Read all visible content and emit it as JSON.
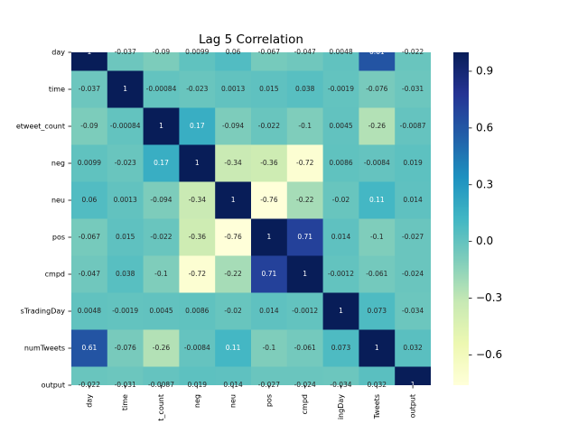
{
  "chart_data": {
    "type": "heatmap",
    "title": "Lag 5 Correlation",
    "rows": [
      "day",
      "time",
      "etweet_count",
      "neg",
      "neu",
      "pos",
      "cmpd",
      "sTradingDay",
      "numTweets",
      "output"
    ],
    "columns": [
      "day",
      "time",
      "t_count",
      "neg",
      "neu",
      "pos",
      "cmpd",
      "ingDay",
      "Tweets",
      "output"
    ],
    "values": [
      [
        1,
        -0.037,
        -0.09,
        0.0099,
        0.06,
        -0.067,
        -0.047,
        0.0048,
        0.61,
        -0.022
      ],
      [
        -0.037,
        1,
        -0.00084,
        -0.023,
        0.0013,
        0.015,
        0.038,
        -0.0019,
        -0.076,
        -0.031
      ],
      [
        -0.09,
        -0.00084,
        1,
        0.17,
        -0.094,
        -0.022,
        -0.1,
        0.0045,
        -0.26,
        -0.0087
      ],
      [
        0.0099,
        -0.023,
        0.17,
        1,
        -0.34,
        -0.36,
        -0.72,
        0.0086,
        -0.0084,
        0.019
      ],
      [
        0.06,
        0.0013,
        -0.094,
        -0.34,
        1,
        -0.76,
        -0.22,
        -0.02,
        0.11,
        0.014
      ],
      [
        -0.067,
        0.015,
        -0.022,
        -0.36,
        -0.76,
        1,
        0.71,
        0.014,
        -0.1,
        -0.027
      ],
      [
        -0.047,
        0.038,
        -0.1,
        -0.72,
        -0.22,
        0.71,
        1,
        -0.0012,
        -0.061,
        -0.024
      ],
      [
        0.0048,
        -0.0019,
        0.0045,
        0.0086,
        -0.02,
        0.014,
        -0.0012,
        1,
        0.073,
        -0.034
      ],
      [
        0.61,
        -0.076,
        -0.26,
        -0.0084,
        0.11,
        -0.1,
        -0.061,
        0.073,
        1,
        0.032
      ],
      [
        -0.022,
        -0.031,
        -0.0087,
        0.019,
        0.014,
        -0.027,
        -0.024,
        -0.034,
        0.032,
        1
      ]
    ],
    "clim": [
      -0.76,
      1
    ],
    "cticks": [
      {
        "value": -0.6,
        "label": "−0.6"
      },
      {
        "value": -0.3,
        "label": "−0.3"
      },
      {
        "value": 0,
        "label": "0.0"
      },
      0.3,
      0.6,
      0.9
    ],
    "colormap": [
      "#ffffd9",
      "#edf8b1",
      "#c7e9b4",
      "#7fcdbb",
      "#41b6c4",
      "#1d91c0",
      "#225ea8",
      "#253494",
      "#081d58"
    ]
  }
}
